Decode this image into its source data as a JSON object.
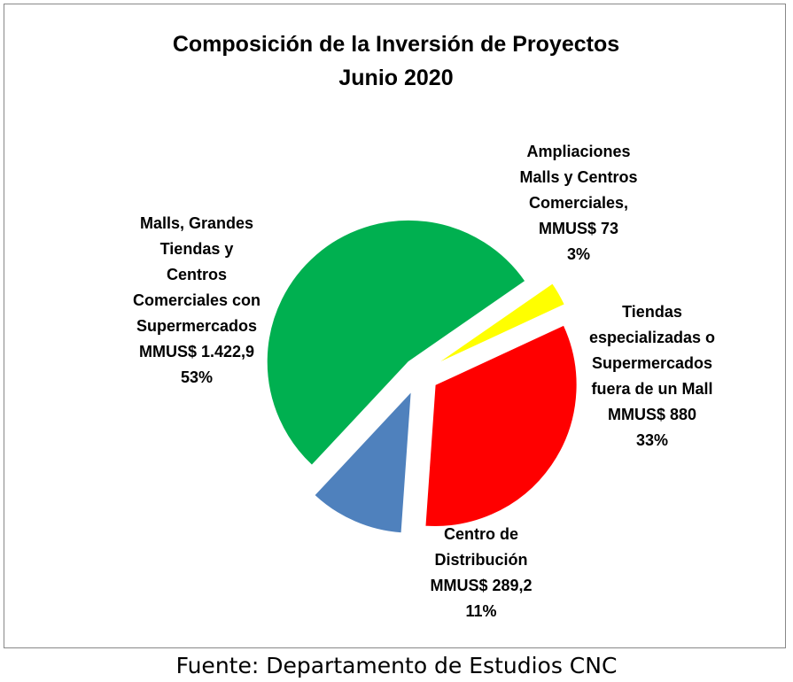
{
  "chart_data": {
    "type": "pie",
    "title": [
      "Composición de la Inversión de Proyectos",
      "Junio 2020"
    ],
    "unit": "MMUS$",
    "slices": [
      {
        "key": "malls",
        "value": 1422.9,
        "percent": 53,
        "color": "#00B050",
        "label_lines": [
          "Malls, Grandes",
          "Tiendas y",
          "Centros",
          "Comerciales con",
          "Supermercados",
          "MMUS$ 1.422,9",
          "53%"
        ]
      },
      {
        "key": "ampliaciones",
        "value": 73,
        "percent": 3,
        "color": "#FFFF00",
        "label_lines": [
          "Ampliaciones",
          "Malls y Centros",
          "Comerciales,",
          "MMUS$ 73",
          "3%"
        ]
      },
      {
        "key": "tiendas",
        "value": 880,
        "percent": 33,
        "color": "#FF0000",
        "label_lines": [
          "Tiendas",
          "especializadas o",
          "Supermercados",
          "fuera de un Mall",
          "MMUS$ 880",
          "33%"
        ]
      },
      {
        "key": "centro",
        "value": 289.2,
        "percent": 11,
        "color": "#4F81BD",
        "label_lines": [
          "Centro de",
          "Distribución",
          "MMUS$ 289,2",
          "11%"
        ]
      }
    ],
    "legend": "none"
  },
  "source": "Fuente: Departamento de Estudios CNC"
}
